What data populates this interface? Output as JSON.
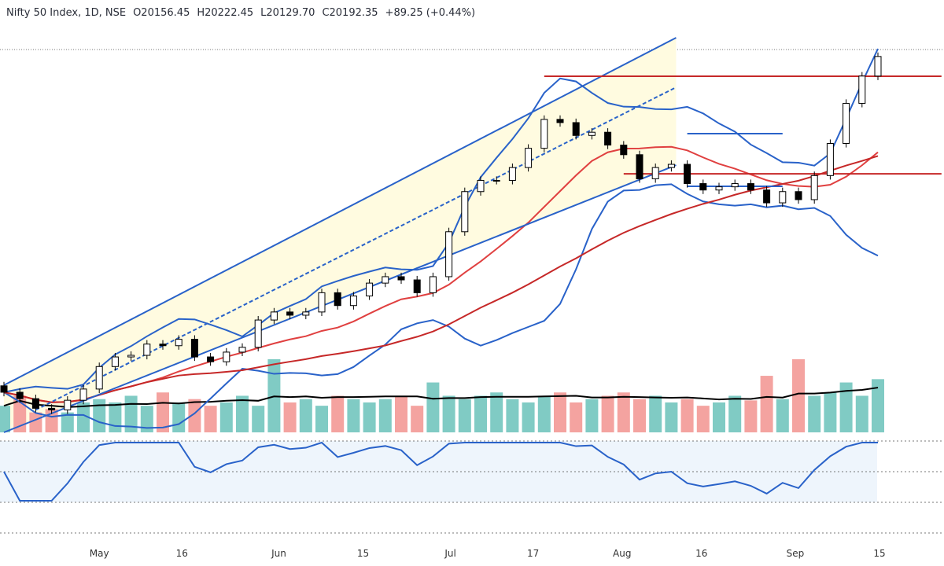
{
  "header": {
    "symbol": "Nifty 50 Index, 1D, NSE",
    "open": "O20156.45",
    "high": "H20222.45",
    "low": "L20129.70",
    "close": "C20192.35",
    "change": "+89.25 (+0.44%)"
  },
  "colors": {
    "up": "#ffffff",
    "down": "#000000",
    "volume_up": "#80cbc4",
    "volume_down": "#f4a3a0",
    "band": "#2962c9",
    "ma_short": "#e04040",
    "ma_long": "#c62828",
    "rsi": "#2962c9",
    "channel_fill": "#fffbe0"
  },
  "chart_data": {
    "type": "candlestick",
    "closes": [
      18100,
      18060,
      18000,
      17990,
      18050,
      18120,
      18260,
      18320,
      18330,
      18400,
      18390,
      18430,
      18320,
      18290,
      18350,
      18380,
      18550,
      18600,
      18580,
      18600,
      18720,
      18640,
      18700,
      18780,
      18820,
      18800,
      18720,
      18820,
      19100,
      19350,
      19420,
      19420,
      19500,
      19620,
      19800,
      19780,
      19700,
      19720,
      19640,
      19580,
      19430,
      19500,
      19520,
      19400,
      19360,
      19380,
      19400,
      19360,
      19280,
      19350,
      19300,
      19450,
      19650,
      19900,
      20070,
      20192
    ],
    "volume_relative": [
      40,
      55,
      30,
      35,
      30,
      45,
      50,
      45,
      55,
      40,
      60,
      45,
      50,
      40,
      45,
      55,
      40,
      110,
      45,
      50,
      40,
      55,
      50,
      45,
      50,
      55,
      40,
      75,
      55,
      50,
      55,
      60,
      50,
      45,
      55,
      60,
      45,
      50,
      55,
      60,
      50,
      55,
      45,
      50,
      40,
      45,
      55,
      48,
      85,
      50,
      110,
      55,
      60,
      75,
      55,
      80
    ],
    "x_ticks": [
      {
        "label": "May",
        "i": 6
      },
      {
        "label": "16",
        "i": 11.2
      },
      {
        "label": "Jun",
        "i": 17.3
      },
      {
        "label": "15",
        "i": 22.6
      },
      {
        "label": "Jul",
        "i": 28.1
      },
      {
        "label": "17",
        "i": 33.3
      },
      {
        "label": "Aug",
        "i": 38.9
      },
      {
        "label": "16",
        "i": 43.9
      },
      {
        "label": "Sep",
        "i": 49.8
      },
      {
        "label": "15",
        "i": 55.1
      }
    ],
    "last_price": 20192.35,
    "trendlines": [
      {
        "name": "channel-upper",
        "from": [
          0,
          18144
        ],
        "to": [
          42.3,
          20309
        ],
        "color": "#2962c9"
      },
      {
        "name": "channel-lower",
        "from": [
          0,
          17850
        ],
        "to": [
          42.3,
          19515
        ],
        "color": "#2962c9"
      }
    ],
    "levels": [
      {
        "price": 20069,
        "from": 34,
        "to": 59,
        "color": "#c62828"
      },
      {
        "price": 19461,
        "from": 39,
        "to": 59,
        "color": "#c62828"
      },
      {
        "price": 19711,
        "from": 43,
        "to": 49,
        "color": "#2962c9"
      },
      {
        "price": 19383,
        "from": 43,
        "to": 49,
        "color": "#2962c9"
      }
    ]
  }
}
